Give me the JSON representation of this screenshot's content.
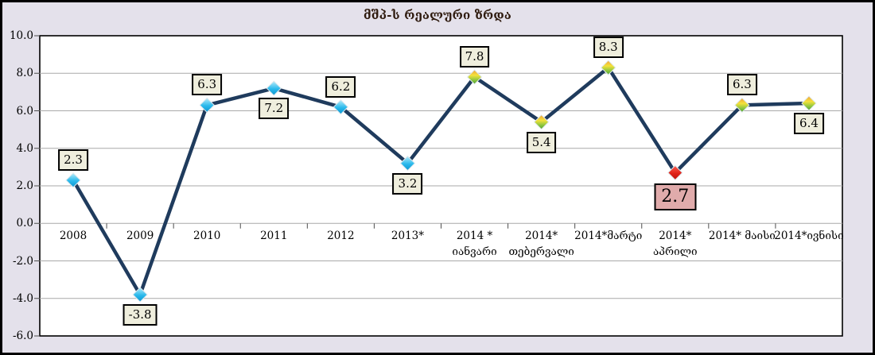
{
  "title": "მშპ-ს რეალური ზრდა",
  "chart_data": {
    "type": "line",
    "title": "მშპ-ს რეალური ზრდა",
    "ylim": [
      -6.0,
      10.0
    ],
    "ytick_step": 2.0,
    "ytick_labels": [
      "10.0",
      "8.0",
      "6.0",
      "4.0",
      "2.0",
      "0.0",
      "-2.0",
      "-4.0",
      "-6.0"
    ],
    "grid": "horizontal",
    "legend": "none",
    "categories": [
      {
        "lines": [
          "2008"
        ]
      },
      {
        "lines": [
          "2009"
        ]
      },
      {
        "lines": [
          "2010"
        ]
      },
      {
        "lines": [
          "2011"
        ]
      },
      {
        "lines": [
          "2012"
        ]
      },
      {
        "lines": [
          "2013*"
        ]
      },
      {
        "lines": [
          "2014 *",
          "იანვარი"
        ]
      },
      {
        "lines": [
          "2014*",
          "თებერვალი"
        ]
      },
      {
        "lines": [
          "2014*მარტი"
        ]
      },
      {
        "lines": [
          "2014*",
          "აპრილი"
        ]
      },
      {
        "lines": [
          "2014* მაისი"
        ]
      },
      {
        "lines": [
          "2014*ივნისი"
        ]
      }
    ],
    "series": [
      {
        "name": "მშპ-ს რეალური ზრდა",
        "values": [
          2.3,
          -3.8,
          6.3,
          7.2,
          6.2,
          3.2,
          7.8,
          5.4,
          8.3,
          2.7,
          6.3,
          6.4
        ],
        "value_labels": [
          "2.3",
          "-3.8",
          "6.3",
          "7.2",
          "6.2",
          "3.2",
          "7.8",
          "5.4",
          "8.3",
          "2.7",
          "6.3",
          "6.4"
        ],
        "label_positions": [
          "above",
          "below",
          "above",
          "below",
          "above",
          "below",
          "above",
          "below",
          "above",
          "below",
          "above",
          "below"
        ],
        "marker_styles": [
          "cyan",
          "cyan",
          "cyan",
          "cyan",
          "cyan",
          "cyan",
          "yellow-green",
          "yellow-green",
          "yellow-green",
          "red",
          "yellow-green",
          "yellow-green"
        ],
        "highlighted_index": 9
      }
    ]
  },
  "colors": {
    "page_background": "#e4e1eb",
    "plot_background": "#ffffff",
    "border": "#000000",
    "gridline": "#a9a9a9",
    "axis_tick": "#4d4d4d",
    "line": "#1f3b5d",
    "marker_cyan": "#29b9ec",
    "marker_yellow_green_top": "#f4e23b",
    "marker_yellow_green_bottom": "#4f9e2f",
    "marker_red": "#e02318",
    "value_label_background": "#efeedd",
    "highlight_label_background": "#e0abab",
    "title_color": "#2e1a0e",
    "text_color": "#000000"
  }
}
